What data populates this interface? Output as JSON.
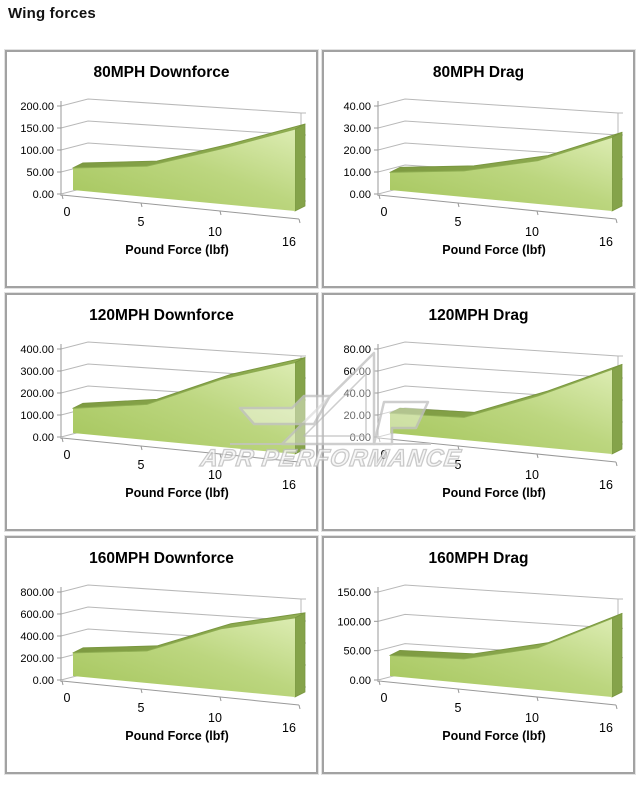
{
  "page_title": "Wing forces",
  "watermark_text": "APR PERFORMANCE",
  "colors": {
    "area_light": "#dcecb2",
    "area_mid": "#bcd67f",
    "area_main": "#a4c55b",
    "area_dark": "#7d9a41",
    "area_side": "#85a34a",
    "gridline": "#b8b8b8",
    "axis": "#999999",
    "text": "#000000",
    "watermark": "#c3c3c3",
    "panel_border": "#a2a2a2"
  },
  "chart_data": [
    {
      "type": "area",
      "title": "80MPH Downforce",
      "xlabel": "Pound Force (lbf)",
      "ylabel": "",
      "categories": [
        0,
        5,
        10,
        16
      ],
      "x_tick_labels": [
        "0",
        "5",
        "10",
        "16"
      ],
      "values": [
        50,
        65,
        108,
        150
      ],
      "y_tick_labels": [
        "200.00",
        "150.00",
        "100.00",
        "50.00",
        "0.00"
      ],
      "ylim": [
        0,
        200
      ],
      "grid": true,
      "legend": false,
      "style": "3d-area"
    },
    {
      "type": "area",
      "title": "80MPH Drag",
      "xlabel": "Pound Force (lbf)",
      "ylabel": "",
      "categories": [
        0,
        5,
        10,
        16
      ],
      "x_tick_labels": [
        "0",
        "5",
        "10",
        "16"
      ],
      "values": [
        8,
        11,
        17,
        27
      ],
      "y_tick_labels": [
        "40.00",
        "30.00",
        "20.00",
        "10.00",
        "0.00"
      ],
      "ylim": [
        0,
        40
      ],
      "grid": true,
      "legend": false,
      "style": "3d-area"
    },
    {
      "type": "area",
      "title": "120MPH Downforce",
      "xlabel": "Pound Force (lbf)",
      "ylabel": "",
      "categories": [
        0,
        5,
        10,
        16
      ],
      "x_tick_labels": [
        "0",
        "5",
        "10",
        "16"
      ],
      "values": [
        112,
        150,
        265,
        335
      ],
      "y_tick_labels": [
        "400.00",
        "300.00",
        "200.00",
        "100.00",
        "0.00"
      ],
      "ylim": [
        0,
        400
      ],
      "grid": true,
      "legend": false,
      "style": "3d-area"
    },
    {
      "type": "area",
      "title": "120MPH Drag",
      "xlabel": "Pound Force (lbf)",
      "ylabel": "",
      "categories": [
        0,
        5,
        10,
        16
      ],
      "x_tick_labels": [
        "0",
        "5",
        "10",
        "16"
      ],
      "values": [
        18,
        19,
        40,
        62
      ],
      "y_tick_labels": [
        "80.00",
        "60.00",
        "40.00",
        "20.00",
        "0.00"
      ],
      "ylim": [
        0,
        80
      ],
      "grid": true,
      "legend": false,
      "style": "3d-area"
    },
    {
      "type": "area",
      "title": "160MPH Downforce",
      "xlabel": "Pound Force (lbf)",
      "ylabel": "",
      "categories": [
        0,
        5,
        10,
        16
      ],
      "x_tick_labels": [
        "0",
        "5",
        "10",
        "16"
      ],
      "values": [
        210,
        270,
        480,
        580
      ],
      "y_tick_labels": [
        "800.00",
        "600.00",
        "400.00",
        "200.00",
        "0.00"
      ],
      "ylim": [
        0,
        800
      ],
      "grid": true,
      "legend": false,
      "style": "3d-area"
    },
    {
      "type": "area",
      "title": "160MPH Drag",
      "xlabel": "Pound Force (lbf)",
      "ylabel": "",
      "categories": [
        0,
        5,
        10,
        16
      ],
      "x_tick_labels": [
        "0",
        "5",
        "10",
        "16"
      ],
      "values": [
        35,
        38,
        62,
        108
      ],
      "y_tick_labels": [
        "150.00",
        "100.00",
        "50.00",
        "0.00"
      ],
      "ylim": [
        0,
        150
      ],
      "grid": true,
      "legend": false,
      "style": "3d-area"
    }
  ]
}
